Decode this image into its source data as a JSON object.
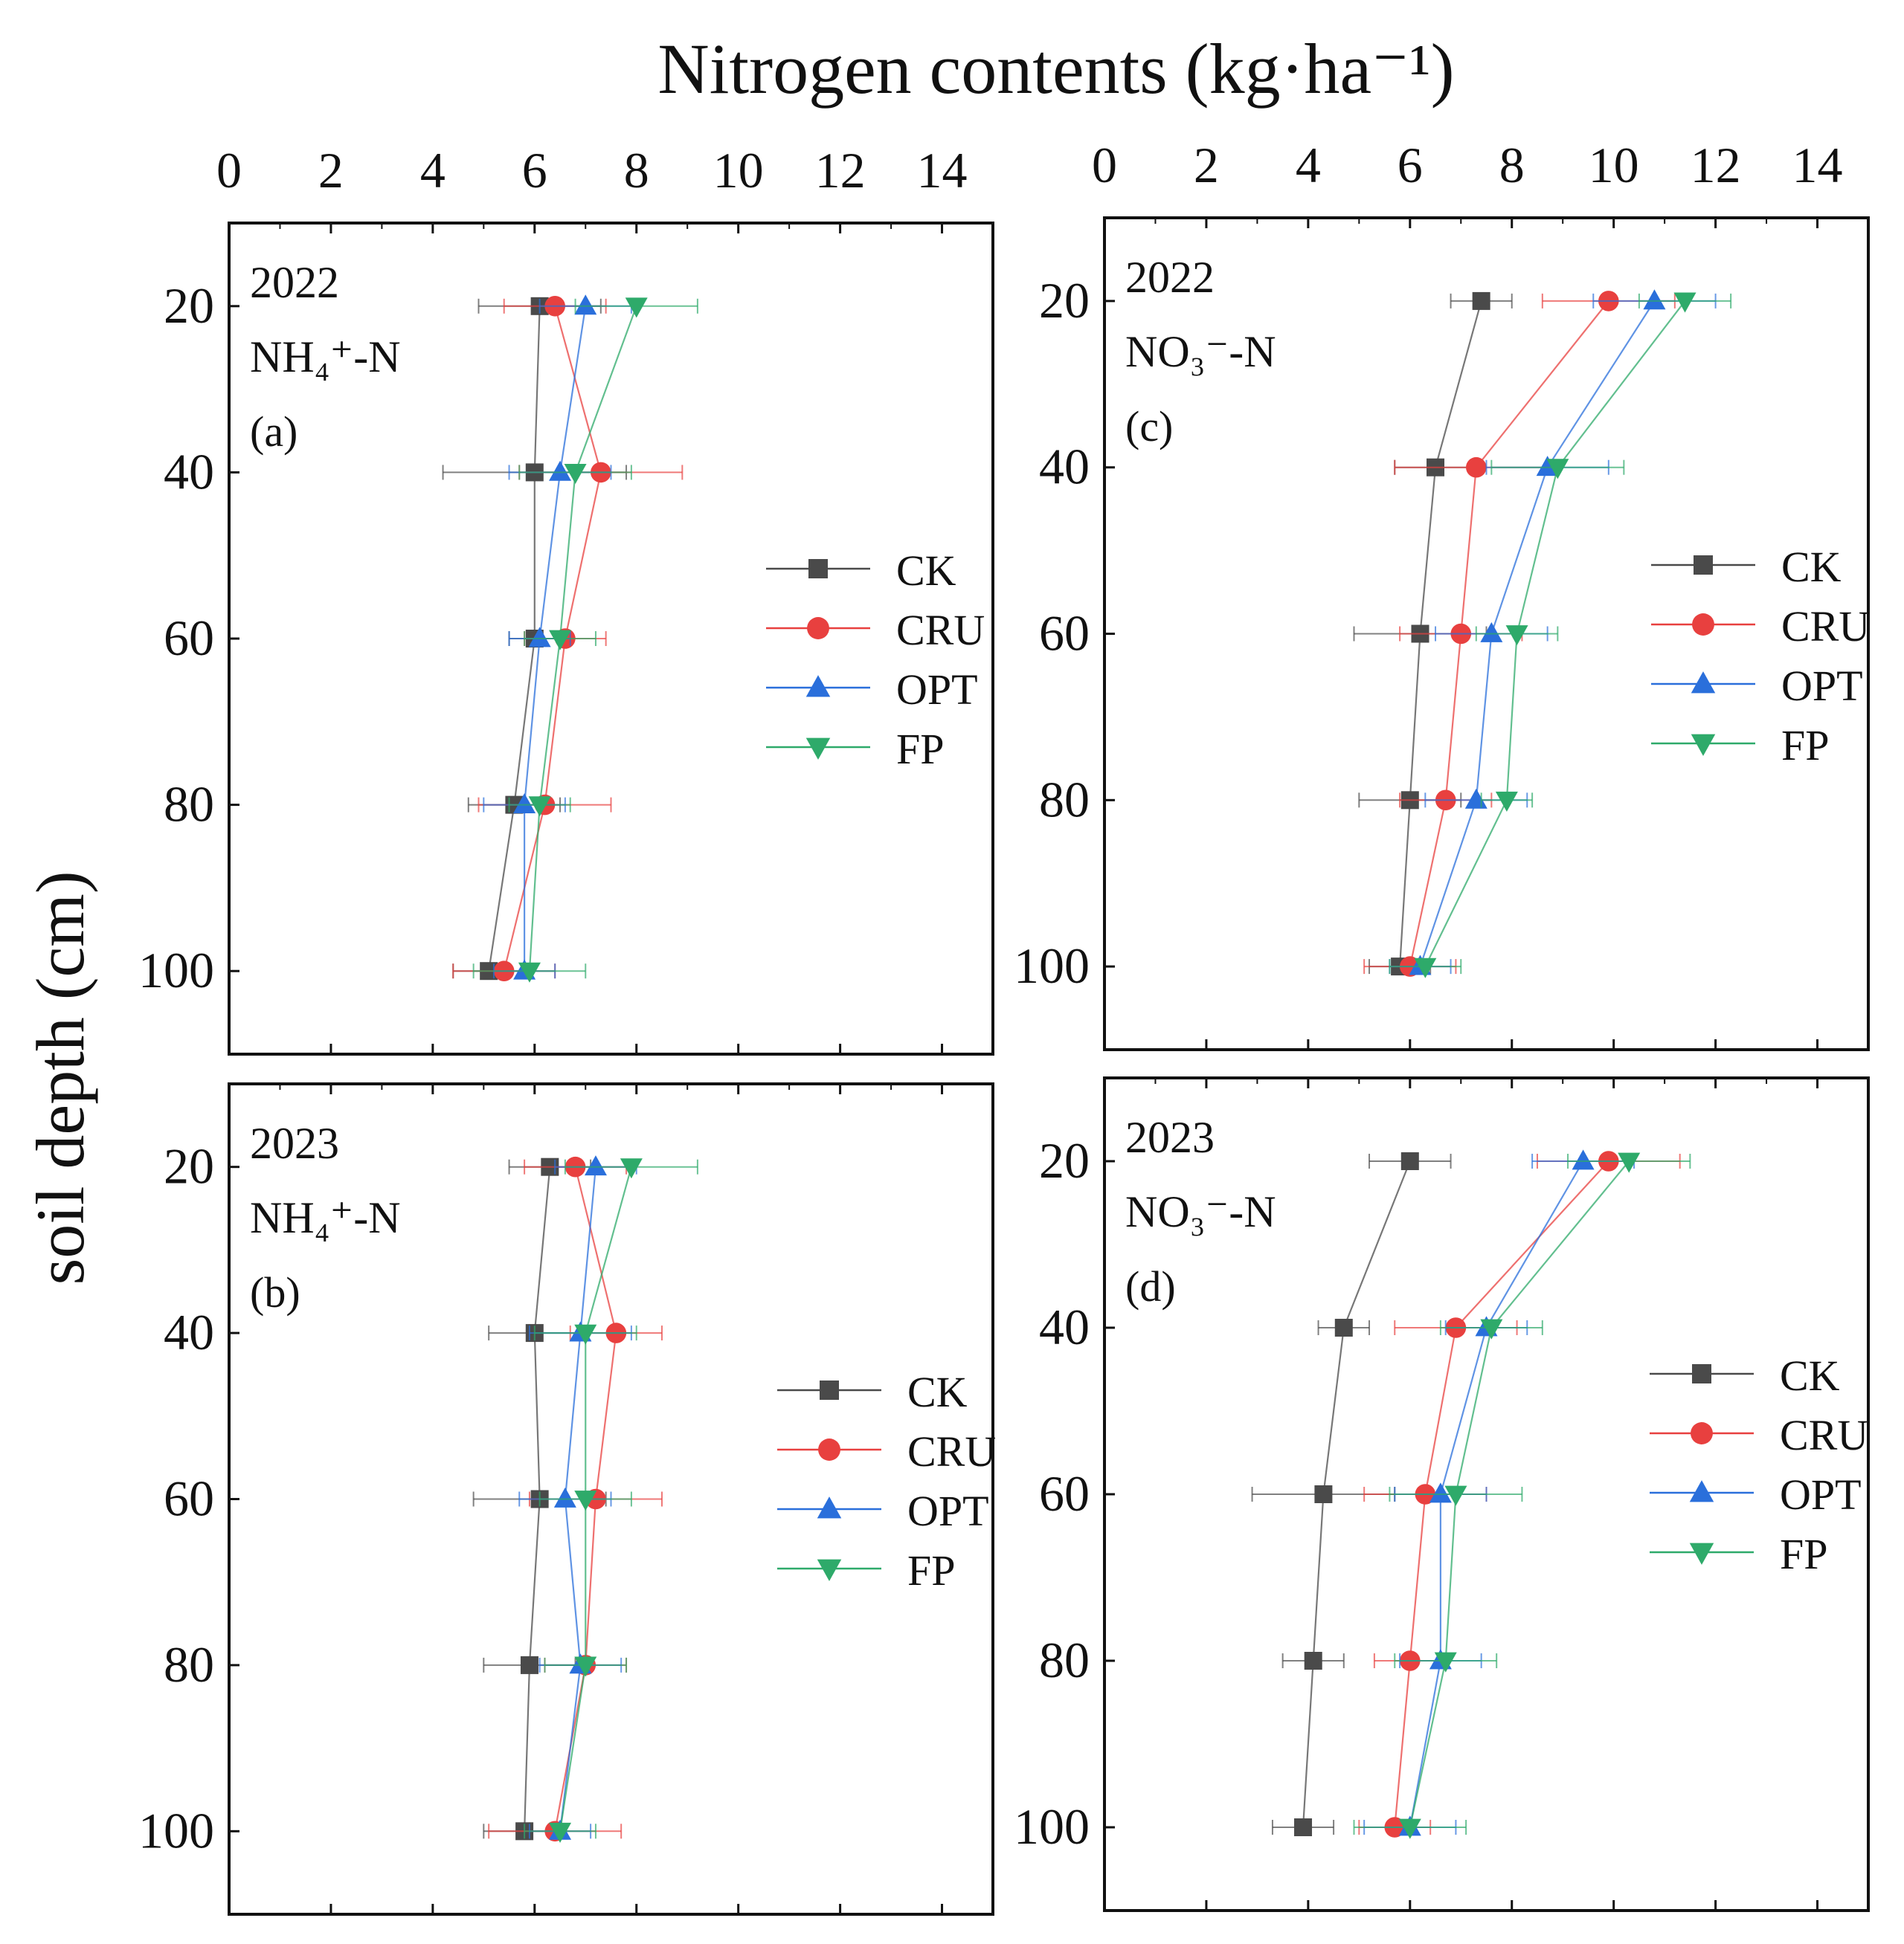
{
  "figure": {
    "x_title": "Nitrogen contents (kg·ha⁻¹)",
    "y_title": "soil depth (cm)"
  },
  "colors": {
    "CK": "#4a4a4a",
    "CRU": "#e8403f",
    "OPT": "#2a6fdb",
    "FP": "#2eaa6a"
  },
  "chart_data": [
    {
      "type": "scatter",
      "year": "2022",
      "nutrient": "NH₄⁺-N",
      "panel_label": "(a)",
      "x_ticks": [
        "0",
        "2",
        "4",
        "6",
        "8",
        "10",
        "12",
        "14"
      ],
      "y_ticks": [
        "20",
        "40",
        "60",
        "80",
        "100"
      ],
      "xlim": [
        0,
        15
      ],
      "ylim": [
        10,
        110
      ],
      "depth": [
        20,
        40,
        60,
        80,
        100
      ],
      "series": [
        {
          "name": "CK",
          "values": [
            6.1,
            6.0,
            6.0,
            5.6,
            5.1
          ],
          "errors": [
            1.2,
            1.8,
            0.5,
            0.9,
            0.7
          ]
        },
        {
          "name": "CRU",
          "values": [
            6.4,
            7.3,
            6.6,
            6.2,
            5.4
          ],
          "errors": [
            1.0,
            1.6,
            0.8,
            1.3,
            1.0
          ]
        },
        {
          "name": "OPT",
          "values": [
            7.0,
            6.5,
            6.1,
            5.8,
            5.8
          ],
          "errors": [
            0.9,
            1.0,
            0.6,
            0.8,
            0.6
          ]
        },
        {
          "name": "FP",
          "values": [
            8.0,
            6.8,
            6.5,
            6.1,
            5.9
          ],
          "errors": [
            1.2,
            1.1,
            0.7,
            0.6,
            1.1
          ]
        }
      ],
      "legend": [
        "CK",
        "CRU",
        "OPT",
        "FP"
      ]
    },
    {
      "type": "scatter",
      "year": "2023",
      "nutrient": "NH₄⁺-N",
      "panel_label": "(b)",
      "x_ticks": [
        "0",
        "2",
        "4",
        "6",
        "8",
        "10",
        "12",
        "14"
      ],
      "y_ticks": [
        "20",
        "40",
        "60",
        "80",
        "100"
      ],
      "xlim": [
        0,
        15
      ],
      "ylim": [
        10,
        110
      ],
      "depth": [
        20,
        40,
        60,
        80,
        100
      ],
      "series": [
        {
          "name": "CK",
          "values": [
            6.3,
            6.0,
            6.1,
            5.9,
            5.8
          ],
          "errors": [
            0.8,
            0.9,
            1.3,
            0.9,
            0.8
          ]
        },
        {
          "name": "CRU",
          "values": [
            6.8,
            7.6,
            7.2,
            7.0,
            6.4
          ],
          "errors": [
            1.0,
            0.9,
            1.3,
            0.8,
            1.3
          ]
        },
        {
          "name": "OPT",
          "values": [
            7.2,
            6.9,
            6.6,
            6.9,
            6.5
          ],
          "errors": [
            0.8,
            1.0,
            0.9,
            0.8,
            0.6
          ]
        },
        {
          "name": "FP",
          "values": [
            7.9,
            7.0,
            7.0,
            7.0,
            6.5
          ],
          "errors": [
            1.3,
            1.0,
            0.9,
            0.8,
            0.7
          ]
        }
      ],
      "legend": [
        "CK",
        "CRU",
        "OPT",
        "FP"
      ]
    },
    {
      "type": "scatter",
      "year": "2022",
      "nutrient": "NO₃⁻-N",
      "panel_label": "(c)",
      "x_ticks": [
        "0",
        "2",
        "4",
        "6",
        "8",
        "10",
        "12",
        "14"
      ],
      "y_ticks": [
        "20",
        "40",
        "60",
        "80",
        "100"
      ],
      "xlim": [
        0,
        15
      ],
      "ylim": [
        10,
        110
      ],
      "depth": [
        20,
        40,
        60,
        80,
        100
      ],
      "series": [
        {
          "name": "CK",
          "values": [
            7.4,
            6.5,
            6.2,
            6.0,
            5.8
          ],
          "errors": [
            0.6,
            0.8,
            1.3,
            1.0,
            0.6
          ]
        },
        {
          "name": "CRU",
          "values": [
            9.9,
            7.3,
            7.0,
            6.7,
            6.0
          ],
          "errors": [
            1.3,
            1.6,
            1.2,
            0.9,
            0.9
          ]
        },
        {
          "name": "OPT",
          "values": [
            10.8,
            8.7,
            7.6,
            7.3,
            6.2
          ],
          "errors": [
            1.2,
            1.2,
            1.1,
            1.0,
            0.6
          ]
        },
        {
          "name": "FP",
          "values": [
            11.4,
            8.9,
            8.1,
            7.9,
            6.3
          ],
          "errors": [
            0.9,
            1.3,
            0.8,
            0.5,
            0.7
          ]
        }
      ],
      "legend": [
        "CK",
        "CRU",
        "OPT",
        "FP"
      ]
    },
    {
      "type": "scatter",
      "year": "2023",
      "nutrient": "NO₃⁻-N",
      "panel_label": "(d)",
      "x_ticks": [
        "0",
        "2",
        "4",
        "6",
        "8",
        "10",
        "12",
        "14"
      ],
      "y_ticks": [
        "20",
        "40",
        "60",
        "80",
        "100"
      ],
      "xlim": [
        0,
        15
      ],
      "ylim": [
        10,
        110
      ],
      "depth": [
        20,
        40,
        60,
        80,
        100
      ],
      "series": [
        {
          "name": "CK",
          "values": [
            6.0,
            4.7,
            4.3,
            4.1,
            3.9
          ],
          "errors": [
            0.8,
            0.5,
            1.4,
            0.6,
            0.6
          ]
        },
        {
          "name": "CRU",
          "values": [
            9.9,
            6.9,
            6.3,
            6.0,
            5.7
          ],
          "errors": [
            1.4,
            1.2,
            1.2,
            0.7,
            0.7
          ]
        },
        {
          "name": "OPT",
          "values": [
            9.4,
            7.5,
            6.6,
            6.6,
            6.0
          ],
          "errors": [
            1.0,
            0.8,
            0.9,
            0.8,
            0.9
          ]
        },
        {
          "name": "FP",
          "values": [
            10.3,
            7.6,
            6.9,
            6.7,
            6.0
          ],
          "errors": [
            1.2,
            1.0,
            1.3,
            1.0,
            1.1
          ]
        }
      ],
      "legend": [
        "CK",
        "CRU",
        "OPT",
        "FP"
      ]
    }
  ]
}
